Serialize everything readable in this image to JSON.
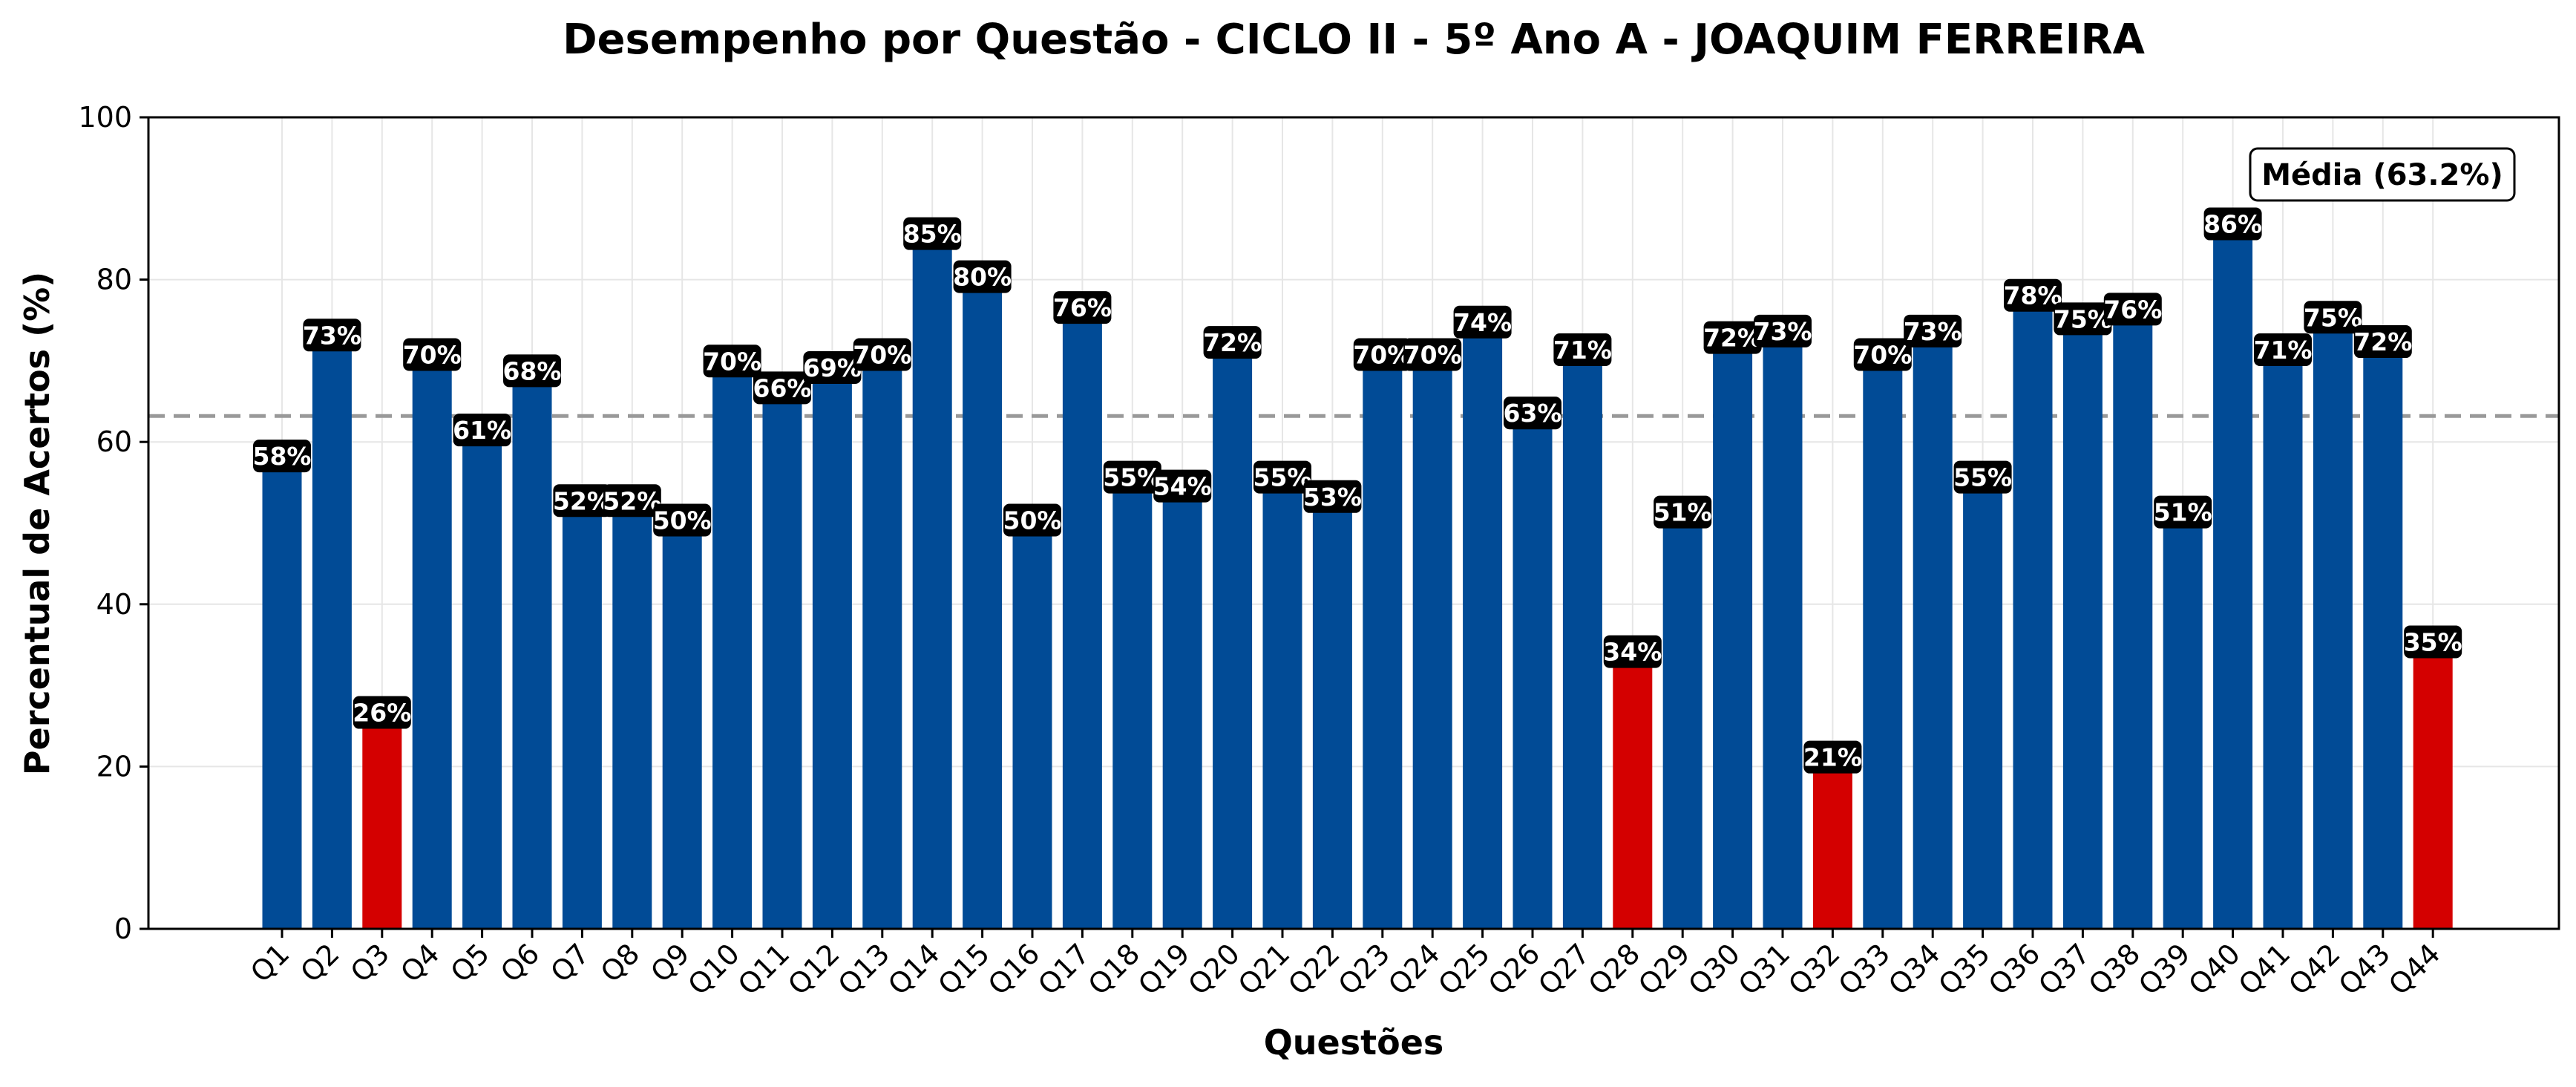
{
  "chart_data": {
    "type": "bar",
    "title": "Desempenho por Questão - CICLO II - 5º Ano A - JOAQUIM FERREIRA",
    "xlabel": "Questões",
    "ylabel": "Percentual de Acertos (%)",
    "ylim": [
      0,
      100
    ],
    "yticks": [
      "0",
      "20",
      "40",
      "60",
      "80",
      "100"
    ],
    "grid": true,
    "categories": [
      "Q1",
      "Q2",
      "Q3",
      "Q4",
      "Q5",
      "Q6",
      "Q7",
      "Q8",
      "Q9",
      "Q10",
      "Q11",
      "Q12",
      "Q13",
      "Q14",
      "Q15",
      "Q16",
      "Q17",
      "Q18",
      "Q19",
      "Q20",
      "Q21",
      "Q22",
      "Q23",
      "Q24",
      "Q25",
      "Q26",
      "Q27",
      "Q28",
      "Q29",
      "Q30",
      "Q31",
      "Q32",
      "Q33",
      "Q34",
      "Q35",
      "Q36",
      "Q37",
      "Q38",
      "Q39",
      "Q40",
      "Q41",
      "Q42",
      "Q43",
      "Q44"
    ],
    "values": [
      57.9,
      72.8,
      26.3,
      70.4,
      61.1,
      68.4,
      52.4,
      52.4,
      50.0,
      69.6,
      66.3,
      68.8,
      70.4,
      85.3,
      80.0,
      50.0,
      76.2,
      55.3,
      54.2,
      71.9,
      55.3,
      52.9,
      70.4,
      70.4,
      74.4,
      63.2,
      71.0,
      33.8,
      51.0,
      72.5,
      73.3,
      20.8,
      70.4,
      73.3,
      55.3,
      77.7,
      74.8,
      76.0,
      51.0,
      86.5,
      71.0,
      75.0,
      72.0,
      35.0
    ],
    "labels": [
      "58%",
      "73%",
      "26%",
      "70%",
      "61%",
      "68%",
      "52%",
      "52%",
      "50%",
      "70%",
      "66%",
      "69%",
      "70%",
      "85%",
      "80%",
      "50%",
      "76%",
      "55%",
      "54%",
      "72%",
      "55%",
      "53%",
      "70%",
      "70%",
      "74%",
      "63%",
      "71%",
      "34%",
      "51%",
      "72%",
      "73%",
      "21%",
      "70%",
      "73%",
      "55%",
      "78%",
      "75%",
      "76%",
      "51%",
      "86%",
      "71%",
      "75%",
      "72%",
      "35%"
    ],
    "highlight_threshold": 40,
    "mean": 63.2,
    "mean_label": "Média (63.2%)",
    "legend_position": "top-right",
    "colors": {
      "bar": "#014b96",
      "highlight": "#d40000",
      "mean_line": "#999999",
      "label_bg": "#000000",
      "label_text": "#ffffff",
      "grid": "#e6e6e6"
    }
  }
}
